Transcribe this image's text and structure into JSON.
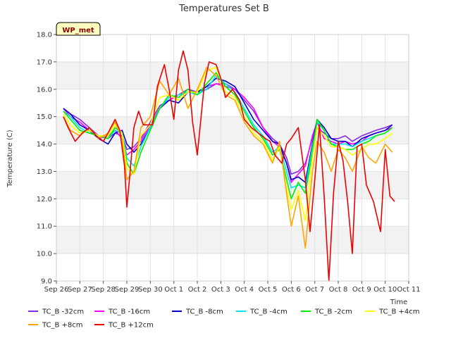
{
  "chart_data": {
    "type": "line",
    "title": "Temperatures Set B",
    "xlabel": "Time",
    "ylabel": "Temperature (C)",
    "badge": "WP_met",
    "xlim": [
      0,
      15
    ],
    "ylim": [
      9.0,
      18.0
    ],
    "x_ticks": [
      {
        "v": 0,
        "label": "Sep 26"
      },
      {
        "v": 1,
        "label": "Sep 27"
      },
      {
        "v": 2,
        "label": "Sep 28"
      },
      {
        "v": 3,
        "label": "Sep 29"
      },
      {
        "v": 4,
        "label": "Sep 30"
      },
      {
        "v": 5,
        "label": "Oct 1"
      },
      {
        "v": 6,
        "label": "Oct 2"
      },
      {
        "v": 7,
        "label": "Oct 3"
      },
      {
        "v": 8,
        "label": "Oct 4"
      },
      {
        "v": 9,
        "label": "Oct 5"
      },
      {
        "v": 10,
        "label": "Oct 6"
      },
      {
        "v": 11,
        "label": "Oct 7"
      },
      {
        "v": 12,
        "label": "Oct 8"
      },
      {
        "v": 13,
        "label": "Oct 9"
      },
      {
        "v": 14,
        "label": "Oct 10"
      },
      {
        "v": 15,
        "label": "Oct 11"
      }
    ],
    "y_ticks": [
      {
        "v": 9,
        "label": "9.0"
      },
      {
        "v": 10,
        "label": "10.0"
      },
      {
        "v": 11,
        "label": "11.0"
      },
      {
        "v": 12,
        "label": "12.0"
      },
      {
        "v": 13,
        "label": "13.0"
      },
      {
        "v": 14,
        "label": "14.0"
      },
      {
        "v": 15,
        "label": "15.0"
      },
      {
        "v": 16,
        "label": "16.0"
      },
      {
        "v": 17,
        "label": "17.0"
      },
      {
        "v": 18,
        "label": "18.0"
      }
    ],
    "grid": true,
    "legend_position": "bottom",
    "series": [
      {
        "name": "TC_B -32cm",
        "color": "#8a2be2",
        "x": [
          0.3,
          0.6,
          1.0,
          1.4,
          1.8,
          2.2,
          2.5,
          2.8,
          3.0,
          3.3,
          3.6,
          4.0,
          4.4,
          4.8,
          5.2,
          5.6,
          6.0,
          6.4,
          6.8,
          7.2,
          7.6,
          8.0,
          8.4,
          8.8,
          9.2,
          9.5,
          9.8,
          10.0,
          10.3,
          10.6,
          10.9,
          11.1,
          11.4,
          11.7,
          12.0,
          12.3,
          12.6,
          13.0,
          13.3,
          13.6,
          14.0,
          14.3
        ],
        "y": [
          15.3,
          15.1,
          14.9,
          14.6,
          14.3,
          14.2,
          14.4,
          14.3,
          13.8,
          13.9,
          14.2,
          14.8,
          15.4,
          15.6,
          15.8,
          16.0,
          15.9,
          16.0,
          16.2,
          16.2,
          16.0,
          15.6,
          15.2,
          14.6,
          14.2,
          14.0,
          13.5,
          12.9,
          13.0,
          13.3,
          14.2,
          14.6,
          14.4,
          14.2,
          14.2,
          14.3,
          14.1,
          14.3,
          14.4,
          14.5,
          14.6,
          14.7
        ]
      },
      {
        "name": "TC_B -16cm",
        "color": "#ff00ff",
        "x": [
          0.3,
          0.6,
          1.0,
          1.4,
          1.8,
          2.2,
          2.5,
          2.8,
          3.0,
          3.3,
          3.6,
          4.0,
          4.4,
          4.8,
          5.2,
          5.6,
          6.0,
          6.4,
          6.8,
          7.2,
          7.6,
          8.0,
          8.4,
          8.8,
          9.2,
          9.5,
          9.8,
          10.0,
          10.3,
          10.6,
          10.9,
          11.1,
          11.4,
          11.7,
          12.0,
          12.3,
          12.6,
          13.0,
          13.3,
          13.6,
          14.0,
          14.3
        ],
        "y": [
          15.3,
          15.0,
          14.8,
          14.5,
          14.2,
          14.3,
          14.5,
          14.2,
          13.6,
          13.8,
          14.1,
          14.7,
          15.3,
          15.6,
          15.8,
          15.9,
          15.9,
          16.1,
          16.2,
          16.1,
          16.0,
          15.7,
          15.3,
          14.6,
          14.1,
          13.9,
          13.3,
          12.6,
          12.9,
          13.2,
          14.3,
          14.8,
          14.2,
          14.1,
          14.0,
          14.1,
          14.0,
          14.1,
          14.3,
          14.4,
          14.5,
          14.6
        ]
      },
      {
        "name": "TC_B -8cm",
        "color": "#0000cd",
        "x": [
          0.3,
          0.6,
          1.0,
          1.4,
          1.8,
          2.2,
          2.5,
          2.8,
          3.0,
          3.3,
          3.6,
          4.0,
          4.4,
          4.8,
          5.2,
          5.6,
          6.0,
          6.4,
          6.8,
          7.2,
          7.6,
          8.0,
          8.4,
          8.8,
          9.2,
          9.5,
          9.8,
          10.0,
          10.3,
          10.6,
          10.9,
          11.1,
          11.4,
          11.7,
          12.0,
          12.3,
          12.6,
          13.0,
          13.3,
          13.6,
          14.0,
          14.3
        ],
        "y": [
          15.3,
          15.1,
          14.7,
          14.5,
          14.2,
          14.0,
          14.4,
          14.5,
          14.0,
          13.7,
          14.0,
          14.6,
          15.3,
          15.6,
          15.5,
          15.9,
          15.9,
          16.1,
          16.4,
          16.3,
          16.1,
          15.5,
          14.9,
          14.5,
          14.1,
          14.0,
          13.3,
          12.7,
          12.8,
          12.6,
          14.0,
          14.9,
          14.6,
          14.2,
          14.1,
          14.1,
          13.9,
          14.2,
          14.3,
          14.4,
          14.5,
          14.7
        ]
      },
      {
        "name": "TC_B -4cm",
        "color": "#00e5ee",
        "x": [
          0.3,
          0.6,
          1.0,
          1.4,
          1.8,
          2.2,
          2.5,
          2.8,
          3.0,
          3.3,
          3.6,
          4.0,
          4.4,
          4.8,
          5.2,
          5.6,
          6.0,
          6.4,
          6.8,
          7.2,
          7.6,
          8.0,
          8.4,
          8.8,
          9.2,
          9.5,
          9.8,
          10.0,
          10.3,
          10.6,
          10.9,
          11.1,
          11.4,
          11.7,
          12.0,
          12.3,
          12.6,
          13.0,
          13.3,
          13.6,
          14.0,
          14.3
        ],
        "y": [
          15.2,
          15.0,
          14.6,
          14.4,
          14.3,
          14.2,
          14.5,
          14.4,
          13.5,
          13.2,
          13.9,
          14.6,
          15.3,
          15.7,
          15.8,
          15.9,
          15.8,
          16.0,
          16.5,
          16.2,
          15.9,
          15.3,
          14.7,
          14.3,
          13.7,
          13.9,
          13.0,
          12.4,
          12.5,
          12.4,
          13.9,
          14.8,
          14.5,
          14.0,
          14.0,
          14.0,
          13.9,
          14.1,
          14.2,
          14.3,
          14.4,
          14.6
        ]
      },
      {
        "name": "TC_B -2cm",
        "color": "#00ee00",
        "x": [
          0.3,
          0.6,
          1.0,
          1.4,
          1.8,
          2.2,
          2.5,
          2.8,
          3.0,
          3.3,
          3.6,
          4.0,
          4.4,
          4.8,
          5.2,
          5.6,
          6.0,
          6.4,
          6.8,
          7.2,
          7.6,
          8.0,
          8.4,
          8.8,
          9.2,
          9.5,
          9.8,
          10.0,
          10.3,
          10.6,
          10.9,
          11.1,
          11.4,
          11.7,
          12.0,
          12.3,
          12.6,
          13.0,
          13.3,
          13.6,
          14.0,
          14.3
        ],
        "y": [
          15.2,
          14.9,
          14.5,
          14.4,
          14.3,
          14.2,
          14.6,
          14.4,
          13.3,
          12.9,
          13.7,
          14.5,
          15.3,
          15.8,
          15.7,
          16.0,
          15.8,
          16.2,
          16.6,
          16.1,
          15.8,
          15.2,
          14.6,
          14.2,
          13.6,
          13.8,
          12.7,
          12.0,
          12.6,
          12.2,
          13.7,
          14.9,
          14.5,
          14.0,
          13.9,
          13.8,
          13.8,
          14.0,
          14.1,
          14.3,
          14.4,
          14.6
        ]
      },
      {
        "name": "TC_B +4cm",
        "color": "#ffff00",
        "x": [
          0.3,
          0.6,
          1.0,
          1.4,
          1.8,
          2.2,
          2.5,
          2.8,
          3.0,
          3.3,
          3.6,
          4.0,
          4.4,
          4.8,
          5.2,
          5.6,
          6.0,
          6.4,
          6.8,
          7.2,
          7.6,
          8.0,
          8.4,
          8.8,
          9.2,
          9.5,
          9.8,
          10.0,
          10.3,
          10.6,
          10.9,
          11.1,
          11.4,
          11.7,
          12.0,
          12.3,
          12.6,
          13.0,
          13.3,
          13.6,
          14.0,
          14.3
        ],
        "y": [
          15.1,
          14.7,
          14.4,
          14.5,
          14.3,
          14.3,
          14.7,
          14.4,
          13.1,
          12.9,
          14.3,
          14.7,
          15.7,
          15.8,
          15.6,
          15.9,
          15.9,
          16.7,
          16.8,
          15.9,
          15.7,
          15.0,
          14.4,
          14.1,
          13.4,
          13.9,
          12.4,
          11.6,
          12.3,
          11.2,
          13.5,
          14.6,
          14.3,
          13.9,
          13.9,
          13.8,
          13.6,
          13.8,
          14.0,
          14.0,
          14.2,
          14.4
        ]
      },
      {
        "name": "TC_B +8cm",
        "color": "#ffa500",
        "x": [
          0.3,
          0.6,
          1.0,
          1.4,
          1.8,
          2.2,
          2.5,
          2.8,
          3.0,
          3.3,
          3.6,
          4.0,
          4.4,
          4.8,
          5.2,
          5.6,
          6.0,
          6.4,
          6.8,
          7.2,
          7.6,
          8.0,
          8.4,
          8.8,
          9.2,
          9.5,
          9.8,
          10.0,
          10.3,
          10.6,
          10.9,
          11.1,
          11.4,
          11.7,
          12.0,
          12.3,
          12.6,
          13.0,
          13.3,
          13.6,
          14.0,
          14.3
        ],
        "y": [
          15.0,
          14.5,
          14.3,
          14.6,
          14.2,
          14.4,
          14.8,
          14.2,
          12.7,
          13.0,
          14.6,
          15.0,
          16.3,
          15.8,
          16.4,
          15.3,
          16.0,
          16.8,
          16.5,
          15.8,
          15.6,
          14.8,
          14.3,
          14.0,
          13.3,
          14.1,
          12.2,
          11.0,
          12.1,
          10.2,
          13.0,
          14.1,
          13.7,
          13.0,
          13.8,
          13.5,
          13.0,
          13.9,
          13.5,
          13.3,
          14.0,
          13.7
        ]
      },
      {
        "name": "TC_B +12cm",
        "color": "#ee0000",
        "x": [
          0.3,
          0.5,
          0.8,
          1.1,
          1.4,
          1.7,
          2.0,
          2.2,
          2.5,
          2.7,
          2.9,
          3.0,
          3.1,
          3.3,
          3.5,
          3.7,
          3.9,
          4.1,
          4.3,
          4.6,
          4.8,
          5.0,
          5.2,
          5.4,
          5.6,
          5.8,
          6.0,
          6.3,
          6.5,
          6.8,
          7.0,
          7.2,
          7.5,
          7.8,
          8.0,
          8.3,
          8.6,
          8.9,
          9.1,
          9.3,
          9.6,
          9.8,
          10.0,
          10.3,
          10.6,
          10.8,
          11.0,
          11.2,
          11.4,
          11.6,
          11.8,
          12.0,
          12.2,
          12.4,
          12.6,
          12.8,
          13.0,
          13.2,
          13.5,
          13.8,
          14.0,
          14.2,
          14.4
        ],
        "y": [
          15.0,
          14.6,
          14.1,
          14.4,
          14.6,
          14.3,
          14.1,
          14.4,
          14.9,
          14.5,
          13.2,
          11.7,
          12.6,
          14.6,
          15.2,
          14.7,
          14.7,
          14.7,
          16.1,
          16.9,
          16.0,
          14.9,
          16.7,
          17.4,
          16.7,
          14.8,
          13.6,
          16.2,
          17.0,
          16.9,
          16.4,
          15.7,
          16.0,
          15.6,
          14.9,
          14.6,
          14.4,
          14.2,
          14.1,
          13.6,
          13.3,
          14.0,
          14.2,
          14.6,
          12.7,
          10.8,
          12.7,
          14.7,
          12.1,
          9.0,
          12.2,
          14.1,
          13.4,
          11.9,
          10.0,
          13.9,
          14.0,
          12.5,
          11.9,
          10.8,
          13.8,
          12.1,
          11.9
        ]
      }
    ]
  }
}
